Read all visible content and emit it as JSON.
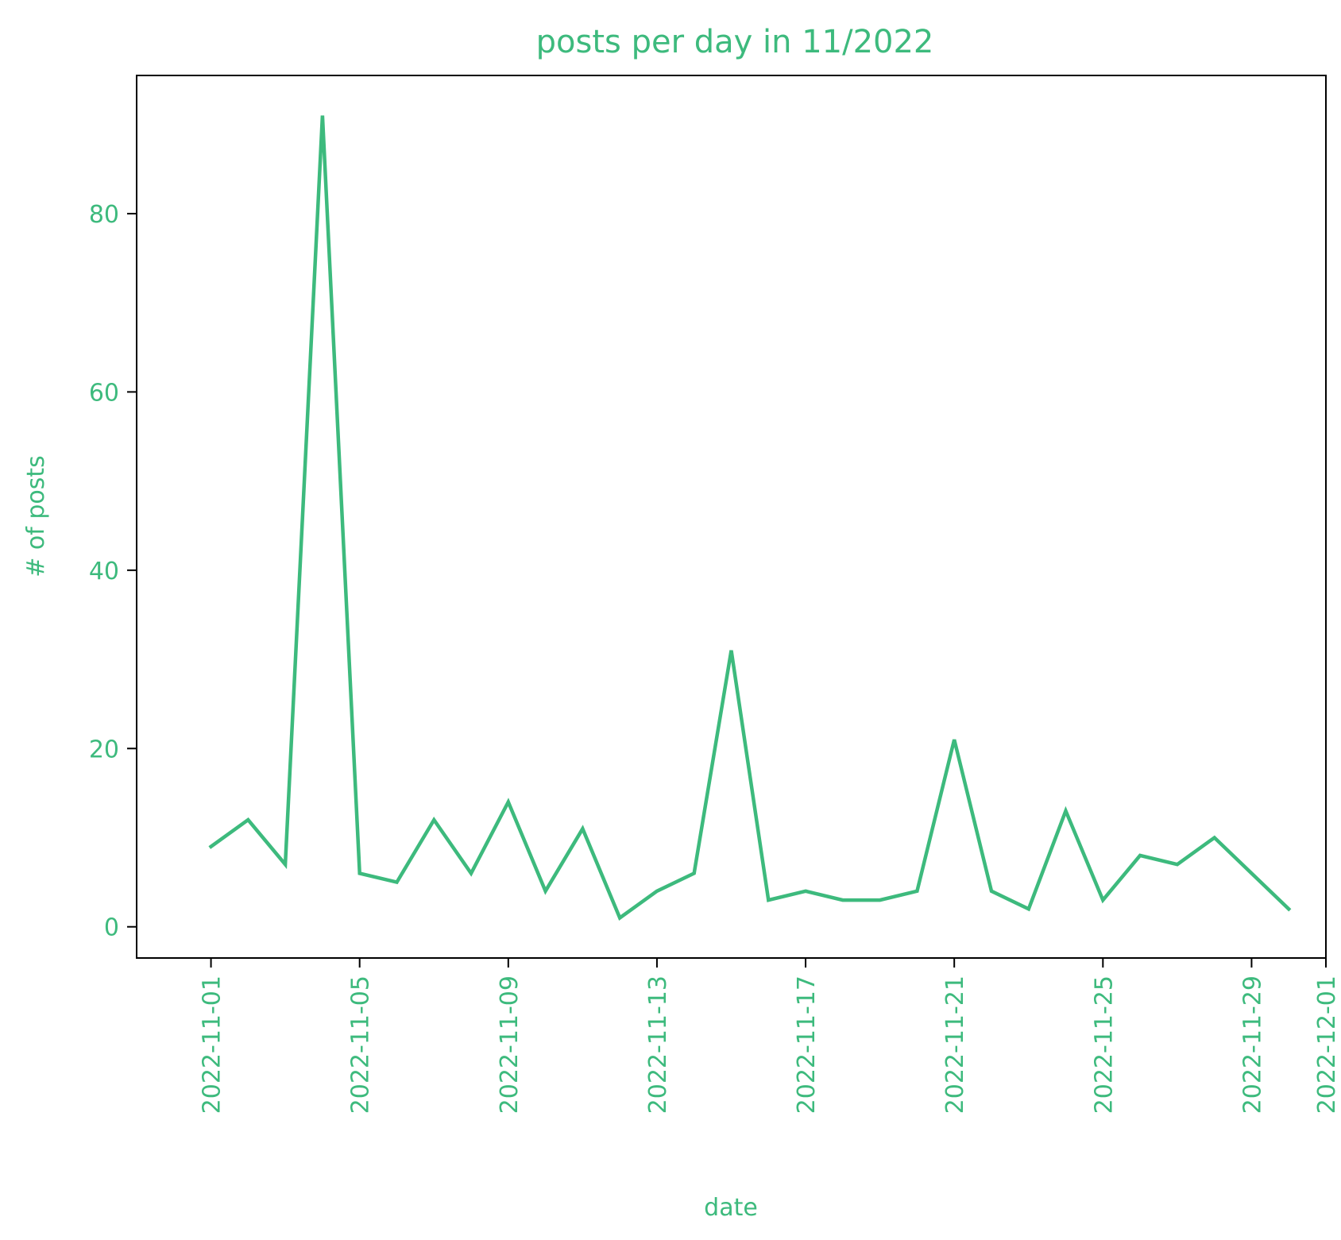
{
  "colors": {
    "accent": "#3dba7d",
    "frame": "#000000",
    "background": "#ffffff"
  },
  "chart_data": {
    "type": "line",
    "title": "posts per day in 11/2022",
    "xlabel": "date",
    "ylabel": "# of posts",
    "grid": false,
    "legend": "none",
    "x_tick_labels": [
      "2022-11-01",
      "2022-11-05",
      "2022-11-09",
      "2022-11-13",
      "2022-11-17",
      "2022-11-21",
      "2022-11-25",
      "2022-11-29",
      "2022-12-01"
    ],
    "y_ticks": [
      0,
      20,
      40,
      60,
      80
    ],
    "xlim": [
      "2022-10-30",
      "2022-12-01"
    ],
    "ylim": [
      -3.5,
      95.5
    ],
    "series": [
      {
        "x": [
          "2022-11-01",
          "2022-11-02",
          "2022-11-03",
          "2022-11-04",
          "2022-11-05",
          "2022-11-06",
          "2022-11-07",
          "2022-11-08",
          "2022-11-09",
          "2022-11-10",
          "2022-11-11",
          "2022-11-12",
          "2022-11-13",
          "2022-11-14",
          "2022-11-15",
          "2022-11-16",
          "2022-11-17",
          "2022-11-18",
          "2022-11-19",
          "2022-11-20",
          "2022-11-21",
          "2022-11-22",
          "2022-11-23",
          "2022-11-24",
          "2022-11-25",
          "2022-11-26",
          "2022-11-27",
          "2022-11-28",
          "2022-11-29",
          "2022-11-30"
        ],
        "values": [
          9,
          12,
          7,
          91,
          6,
          5,
          12,
          6,
          14,
          4,
          11,
          1,
          4,
          6,
          31,
          3,
          4,
          3,
          3,
          4,
          21,
          4,
          2,
          13,
          3,
          8,
          7,
          10,
          6,
          2
        ]
      }
    ]
  }
}
